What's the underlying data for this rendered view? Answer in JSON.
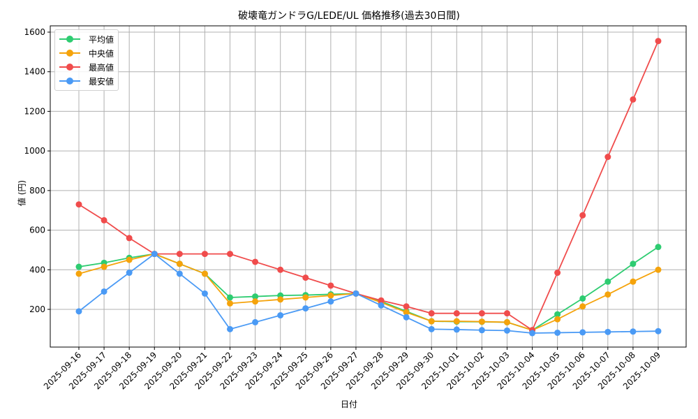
{
  "chart_data": {
    "type": "line",
    "title": "破壊竜ガンドラG/LEDE/UL 価格推移(過去30日間)",
    "xlabel": "日付",
    "ylabel": "値 (円)",
    "ylim": [
      0,
      1630
    ],
    "yticks": [
      200,
      400,
      600,
      800,
      1000,
      1200,
      1400,
      1600
    ],
    "grid": true,
    "legend_position": "upper left",
    "categories": [
      "2025-09-16",
      "2025-09-17",
      "2025-09-18",
      "2025-09-19",
      "2025-09-20",
      "2025-09-21",
      "2025-09-22",
      "2025-09-23",
      "2025-09-24",
      "2025-09-25",
      "2025-09-26",
      "2025-09-27",
      "2025-09-28",
      "2025-09-29",
      "2025-09-30",
      "2025-10-01",
      "2025-10-02",
      "2025-10-03",
      "2025-10-04",
      "2025-10-05",
      "2025-10-06",
      "2025-10-07",
      "2025-10-08",
      "2025-10-09"
    ],
    "series": [
      {
        "name": "平均値",
        "color": "#2ecc71",
        "values": [
          415,
          435,
          460,
          480,
          430,
          380,
          260,
          265,
          270,
          272,
          276,
          280,
          240,
          190,
          140,
          138,
          137,
          135,
          95,
          175,
          255,
          340,
          430,
          515
        ]
      },
      {
        "name": "中央値",
        "color": "#f5a30b",
        "values": [
          380,
          415,
          450,
          480,
          430,
          380,
          230,
          240,
          250,
          260,
          270,
          280,
          235,
          185,
          140,
          140,
          138,
          135,
          95,
          150,
          215,
          275,
          340,
          400
        ]
      },
      {
        "name": "最高値",
        "color": "#f04c4c",
        "values": [
          730,
          650,
          560,
          480,
          480,
          480,
          480,
          440,
          400,
          360,
          320,
          280,
          245,
          215,
          180,
          180,
          180,
          180,
          95,
          385,
          675,
          970,
          1260,
          1555
        ]
      },
      {
        "name": "最安値",
        "color": "#4a9af5",
        "values": [
          190,
          290,
          385,
          480,
          380,
          280,
          100,
          135,
          170,
          205,
          240,
          280,
          220,
          160,
          100,
          98,
          95,
          93,
          80,
          82,
          84,
          86,
          88,
          90
        ]
      }
    ]
  }
}
